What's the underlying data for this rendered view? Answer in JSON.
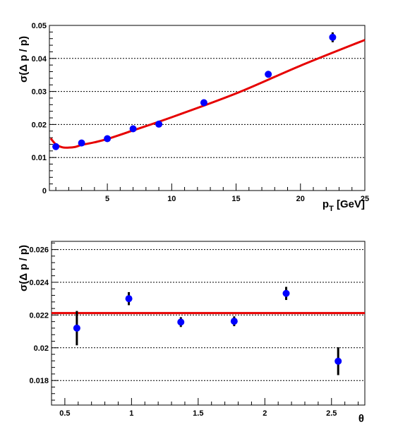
{
  "chart_data": [
    {
      "type": "scatter",
      "xlabel": "p_T [GeV]",
      "ylabel": "σ(Δ p / p)",
      "xlim": [
        0.5,
        25
      ],
      "ylim": [
        0,
        0.05
      ],
      "x_ticks": [
        5,
        10,
        15,
        20,
        25
      ],
      "y_ticks": [
        0,
        0.01,
        0.02,
        0.03,
        0.04,
        0.05
      ],
      "x_tick_labels": [
        "5",
        "10",
        "15",
        "20",
        "25"
      ],
      "y_tick_labels": [
        "0",
        "0.01",
        "0.02",
        "0.03",
        "0.04",
        "0.05"
      ],
      "grid": "horizontal dashed",
      "points": [
        {
          "x": 1.0,
          "y": 0.0133,
          "err": 0.0004
        },
        {
          "x": 3.0,
          "y": 0.0144,
          "err": 0.0004
        },
        {
          "x": 5.0,
          "y": 0.0157,
          "err": 0.0004
        },
        {
          "x": 7.0,
          "y": 0.0187,
          "err": 0.0004
        },
        {
          "x": 9.0,
          "y": 0.0201,
          "err": 0.0004
        },
        {
          "x": 12.5,
          "y": 0.0266,
          "err": 0.0004
        },
        {
          "x": 17.5,
          "y": 0.0352,
          "err": 0.0005
        },
        {
          "x": 22.5,
          "y": 0.0464,
          "err": 0.0015
        }
      ],
      "fit_curve": {
        "x": [
          0.6,
          1.0,
          1.5,
          2.0,
          2.5,
          3.0,
          4.0,
          5.0,
          7.0,
          10.0,
          15.0,
          20.0,
          25.0
        ],
        "y": [
          0.0158,
          0.014,
          0.0131,
          0.013,
          0.0132,
          0.0138,
          0.0146,
          0.0156,
          0.0182,
          0.0222,
          0.0294,
          0.0378,
          0.0456
        ]
      },
      "colors": {
        "points": "#0000ff",
        "fit": "#e60000",
        "errors": "#000000"
      }
    },
    {
      "type": "scatter",
      "xlabel": "θ",
      "ylabel": "σ(Δ p / p)",
      "xlim": [
        0.4,
        2.75
      ],
      "ylim": [
        0.0165,
        0.0265
      ],
      "x_ticks": [
        0.5,
        1,
        1.5,
        2,
        2.5
      ],
      "y_ticks": [
        0.018,
        0.02,
        0.022,
        0.024,
        0.026
      ],
      "x_tick_labels": [
        "0.5",
        "1",
        "1.5",
        "2",
        "2.5"
      ],
      "y_tick_labels": [
        "0.018",
        "0.02",
        "0.022",
        "0.024",
        "0.026"
      ],
      "grid": "horizontal dashed",
      "points": [
        {
          "x": 0.59,
          "y": 0.0212,
          "err": 0.00105
        },
        {
          "x": 0.98,
          "y": 0.023,
          "err": 0.0004
        },
        {
          "x": 1.37,
          "y": 0.02157,
          "err": 0.0003
        },
        {
          "x": 1.77,
          "y": 0.02162,
          "err": 0.0003
        },
        {
          "x": 2.16,
          "y": 0.02332,
          "err": 0.0004
        },
        {
          "x": 2.55,
          "y": 0.01918,
          "err": 0.00085
        }
      ],
      "fit_curve": {
        "x": [
          0.4,
          2.75
        ],
        "y": [
          0.02212,
          0.02212
        ]
      },
      "colors": {
        "points": "#0000ff",
        "fit": "#e60000",
        "errors": "#000000"
      }
    }
  ]
}
